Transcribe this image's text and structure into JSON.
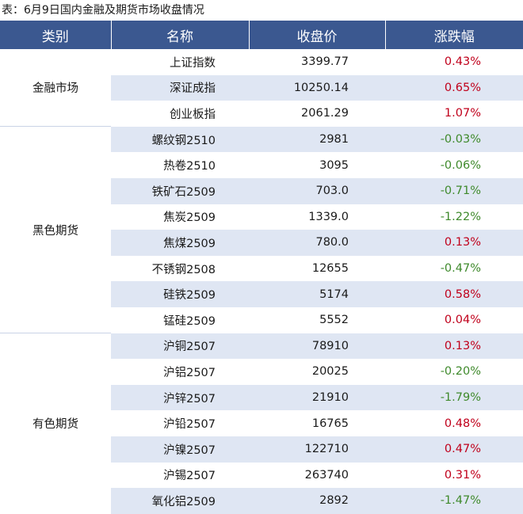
{
  "caption": "表：6月9日国内金融及期货市场收盘情况",
  "headers": {
    "category": "类别",
    "name": "名称",
    "close": "收盘价",
    "change": "涨跌幅"
  },
  "colors": {
    "header_bg": "#3b5890",
    "row_alt": "#dfe6f3",
    "up": "#c0001b",
    "down": "#3f8a2c"
  },
  "groups": [
    {
      "category": "金融市场",
      "rows": [
        {
          "name": "上证指数",
          "close": "3399.77",
          "change": "0.43%",
          "dir": "up"
        },
        {
          "name": "深证成指",
          "close": "10250.14",
          "change": "0.65%",
          "dir": "up"
        },
        {
          "name": "创业板指",
          "close": "2061.29",
          "change": "1.07%",
          "dir": "up"
        }
      ]
    },
    {
      "category": "黑色期货",
      "rows": [
        {
          "name": "螺纹钢2510",
          "close": "2981",
          "change": "-0.03%",
          "dir": "down"
        },
        {
          "name": "热卷2510",
          "close": "3095",
          "change": "-0.06%",
          "dir": "down"
        },
        {
          "name": "铁矿石2509",
          "close": "703.0",
          "change": "-0.71%",
          "dir": "down"
        },
        {
          "name": "焦炭2509",
          "close": "1339.0",
          "change": "-1.22%",
          "dir": "down"
        },
        {
          "name": "焦煤2509",
          "close": "780.0",
          "change": "0.13%",
          "dir": "up"
        },
        {
          "name": "不锈钢2508",
          "close": "12655",
          "change": "-0.47%",
          "dir": "down"
        },
        {
          "name": "硅铁2509",
          "close": "5174",
          "change": "0.58%",
          "dir": "up"
        },
        {
          "name": "锰硅2509",
          "close": "5552",
          "change": "0.04%",
          "dir": "up"
        }
      ]
    },
    {
      "category": "有色期货",
      "rows": [
        {
          "name": "沪铜2507",
          "close": "78910",
          "change": "0.13%",
          "dir": "up"
        },
        {
          "name": "沪铝2507",
          "close": "20025",
          "change": "-0.20%",
          "dir": "down"
        },
        {
          "name": "沪锌2507",
          "close": "21910",
          "change": "-1.79%",
          "dir": "down"
        },
        {
          "name": "沪铅2507",
          "close": "16765",
          "change": "0.48%",
          "dir": "up"
        },
        {
          "name": "沪镍2507",
          "close": "122710",
          "change": "0.47%",
          "dir": "up"
        },
        {
          "name": "沪锡2507",
          "close": "263740",
          "change": "0.31%",
          "dir": "up"
        },
        {
          "name": "氧化铝2509",
          "close": "2892",
          "change": "-1.47%",
          "dir": "down"
        }
      ]
    }
  ]
}
